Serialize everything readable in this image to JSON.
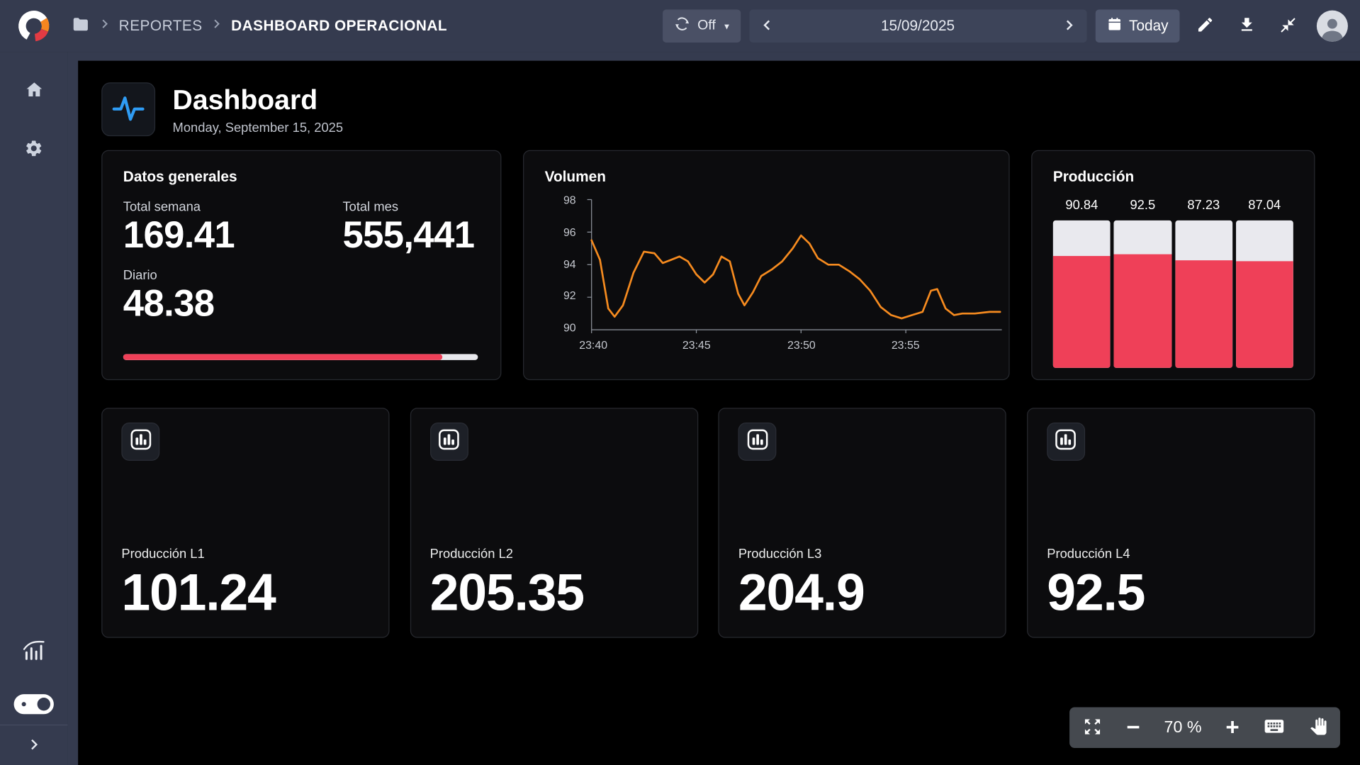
{
  "topbar": {
    "breadcrumb": {
      "items": [
        "REPORTES",
        "DASHBOARD OPERACIONAL"
      ]
    },
    "refresh_label": "Off",
    "date": "15/09/2025",
    "today_label": "Today"
  },
  "header": {
    "title": "Dashboard",
    "subtitle": "Monday, September 15, 2025"
  },
  "datos_generales": {
    "title": "Datos generales",
    "metrics": [
      {
        "label": "Total semana",
        "value": "169.41"
      },
      {
        "label": "Total mes",
        "value": "555,441"
      },
      {
        "label": "Diario",
        "value": "48.38"
      }
    ],
    "progress_pct": 90
  },
  "chart_data": [
    {
      "type": "line",
      "title": "Volumen",
      "x_range_min": [
        0,
        19.5
      ],
      "x_ticks": [
        "23:40",
        "23:45",
        "23:50",
        "23:55"
      ],
      "x_tick_minutes": [
        0,
        5,
        10,
        15
      ],
      "ylim": [
        90,
        98
      ],
      "y_ticks": [
        "98",
        "96",
        "94",
        "92",
        "90"
      ],
      "line_color": "#f68b1f",
      "grid": false,
      "points": [
        [
          0,
          95.5
        ],
        [
          0.4,
          94.3
        ],
        [
          0.8,
          91.3
        ],
        [
          1.1,
          90.8
        ],
        [
          1.5,
          91.5
        ],
        [
          2,
          93.5
        ],
        [
          2.5,
          94.8
        ],
        [
          3,
          94.7
        ],
        [
          3.4,
          94.1
        ],
        [
          3.8,
          94.3
        ],
        [
          4.2,
          94.5
        ],
        [
          4.6,
          94.2
        ],
        [
          5,
          93.4
        ],
        [
          5.4,
          92.9
        ],
        [
          5.8,
          93.4
        ],
        [
          6.2,
          94.5
        ],
        [
          6.6,
          94.2
        ],
        [
          7,
          92.2
        ],
        [
          7.3,
          91.5
        ],
        [
          7.7,
          92.3
        ],
        [
          8.1,
          93.3
        ],
        [
          8.6,
          93.7
        ],
        [
          9.1,
          94.2
        ],
        [
          9.6,
          95
        ],
        [
          10,
          95.8
        ],
        [
          10.4,
          95.3
        ],
        [
          10.8,
          94.4
        ],
        [
          11.3,
          94
        ],
        [
          11.8,
          94
        ],
        [
          12.3,
          93.6
        ],
        [
          12.8,
          93.1
        ],
        [
          13.3,
          92.4
        ],
        [
          13.8,
          91.4
        ],
        [
          14.3,
          90.9
        ],
        [
          14.8,
          90.7
        ],
        [
          15.3,
          90.9
        ],
        [
          15.8,
          91.1
        ],
        [
          16.2,
          92.4
        ],
        [
          16.5,
          92.5
        ],
        [
          16.9,
          91.3
        ],
        [
          17.3,
          90.9
        ],
        [
          17.7,
          91
        ],
        [
          18.3,
          91
        ],
        [
          19,
          91.1
        ],
        [
          19.5,
          91.1
        ]
      ]
    },
    {
      "type": "bar",
      "title": "Producción",
      "values": [
        90.84,
        92.5,
        87.23,
        87.04
      ],
      "value_labels": [
        "90.84",
        "92.5",
        "87.23",
        "87.04"
      ],
      "ylim": [
        0,
        120
      ],
      "bar_color": "#ef4058",
      "track_color": "#e9e9ee"
    }
  ],
  "kpis": [
    {
      "label": "Producción L1",
      "value": "101.24"
    },
    {
      "label": "Producción L2",
      "value": "205.35"
    },
    {
      "label": "Producción L3",
      "value": "204.9"
    },
    {
      "label": "Producción L4",
      "value": "92.5"
    }
  ],
  "zoom_toolbar": {
    "level": "70 %"
  },
  "colors": {
    "accent_red": "#ef4058",
    "accent_orange": "#f68b1f",
    "accent_blue": "#2f9cf4",
    "topbar_bg": "#353b4f"
  },
  "icons": [
    "brand-logo",
    "folder-icon",
    "breadcrumb-chevron-icon",
    "refresh-icon",
    "caret-down-icon",
    "chevron-left-icon",
    "chevron-right-icon",
    "calendar-icon",
    "pencil-icon",
    "download-icon",
    "collapse-icon",
    "avatar",
    "home-icon",
    "gear-icon",
    "analytics-icon",
    "toggle-switch",
    "sidebar-expand-chevron-icon",
    "activity-icon",
    "bar-chart-icon",
    "zoom-out-map-icon",
    "zoom-out-icon",
    "zoom-in-icon",
    "keyboard-icon",
    "pan-hand-icon"
  ]
}
